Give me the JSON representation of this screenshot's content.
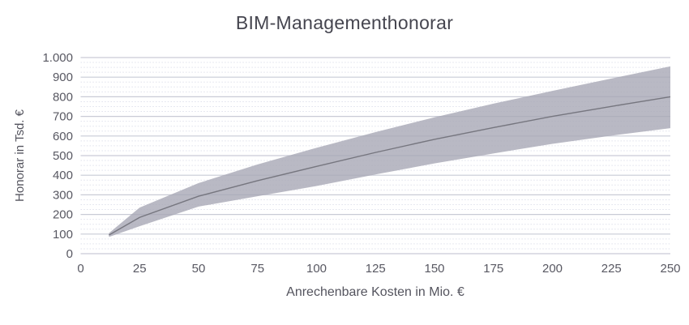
{
  "page": {
    "background": "#ffffff"
  },
  "chart_data": {
    "type": "area",
    "title": "BIM-Managementhonorar",
    "xlabel": "Anrechenbare Kosten in Mio. €",
    "ylabel": "Honorar in Tsd. €",
    "xlim": [
      0,
      250
    ],
    "ylim": [
      0,
      1000
    ],
    "x_ticks": [
      0,
      25,
      50,
      75,
      100,
      125,
      150,
      175,
      200,
      225,
      250
    ],
    "y_ticks": [
      0,
      100,
      200,
      300,
      400,
      500,
      600,
      700,
      800,
      900,
      1000
    ],
    "y_tick_labels": [
      "0",
      "100",
      "200",
      "300",
      "400",
      "500",
      "600",
      "700",
      "800",
      "900",
      "1.000"
    ],
    "grid": {
      "major_every": 100,
      "minor_every": 25,
      "major_color": "#c9cbd6",
      "minor_color": "#dfe1ec"
    },
    "legend": "none",
    "x": [
      12,
      25,
      50,
      75,
      100,
      125,
      150,
      175,
      200,
      225,
      250
    ],
    "series": [
      {
        "name": "upper_bound",
        "values": [
          105,
          235,
          360,
          455,
          540,
          620,
          695,
          765,
          830,
          893,
          955
        ]
      },
      {
        "name": "center",
        "values": [
          95,
          185,
          293,
          372,
          445,
          516,
          583,
          643,
          700,
          751,
          800
        ]
      },
      {
        "name": "lower_bound",
        "values": [
          85,
          140,
          240,
          293,
          345,
          404,
          460,
          511,
          560,
          602,
          640
        ]
      }
    ],
    "band_color": "#a8a8b5",
    "line_color": "#76767f"
  }
}
